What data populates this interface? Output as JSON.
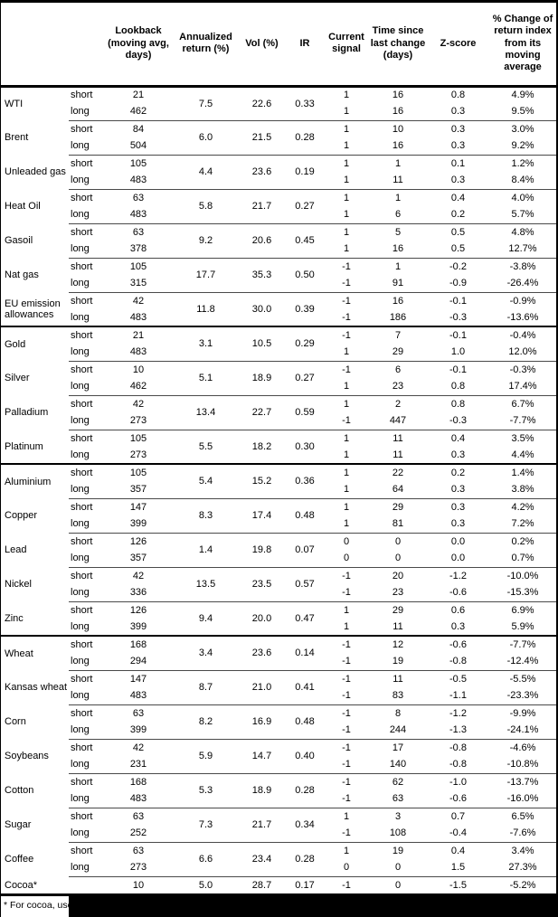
{
  "table": {
    "header": {
      "commodity": "",
      "leg": "",
      "lookback": "Lookback (moving avg, days)",
      "annualized_return": "Annualized return (%)",
      "vol": "Vol (%)",
      "ir": "IR",
      "current_signal": "Current signal",
      "time_since": "Time since last change (days)",
      "z_score": "Z-score",
      "pct_change": "% Change of return index from its moving average"
    },
    "groups": [
      {
        "name": "WTI",
        "sep": "none",
        "ret": "7.5",
        "vol": "22.6",
        "ir": "0.33",
        "legs": [
          [
            "short",
            "21",
            "1",
            "16",
            "0.8",
            "4.9%"
          ],
          [
            "long",
            "462",
            "1",
            "16",
            "0.3",
            "9.5%"
          ]
        ]
      },
      {
        "name": "Brent",
        "sep": "thin",
        "ret": "6.0",
        "vol": "21.5",
        "ir": "0.28",
        "legs": [
          [
            "short",
            "84",
            "1",
            "10",
            "0.3",
            "3.0%"
          ],
          [
            "long",
            "504",
            "1",
            "16",
            "0.3",
            "9.2%"
          ]
        ]
      },
      {
        "name": "Unleaded gas",
        "sep": "thin",
        "ret": "4.4",
        "vol": "23.6",
        "ir": "0.19",
        "legs": [
          [
            "short",
            "105",
            "1",
            "1",
            "0.1",
            "1.2%"
          ],
          [
            "long",
            "483",
            "1",
            "11",
            "0.3",
            "8.4%"
          ]
        ]
      },
      {
        "name": "Heat Oil",
        "sep": "thin",
        "ret": "5.8",
        "vol": "21.7",
        "ir": "0.27",
        "legs": [
          [
            "short",
            "63",
            "1",
            "1",
            "0.4",
            "4.0%"
          ],
          [
            "long",
            "483",
            "1",
            "6",
            "0.2",
            "5.7%"
          ]
        ]
      },
      {
        "name": "Gasoil",
        "sep": "thin",
        "ret": "9.2",
        "vol": "20.6",
        "ir": "0.45",
        "legs": [
          [
            "short",
            "63",
            "1",
            "5",
            "0.5",
            "4.8%"
          ],
          [
            "long",
            "378",
            "1",
            "16",
            "0.5",
            "12.7%"
          ]
        ]
      },
      {
        "name": "Nat gas",
        "sep": "thin",
        "ret": "17.7",
        "vol": "35.3",
        "ir": "0.50",
        "legs": [
          [
            "short",
            "105",
            "-1",
            "1",
            "-0.2",
            "-3.8%"
          ],
          [
            "long",
            "315",
            "-1",
            "91",
            "-0.9",
            "-26.4%"
          ]
        ]
      },
      {
        "name": "EU emission allowances",
        "sep": "thin",
        "ret": "11.8",
        "vol": "30.0",
        "ir": "0.39",
        "legs": [
          [
            "short",
            "42",
            "-1",
            "16",
            "-0.1",
            "-0.9%"
          ],
          [
            "long",
            "483",
            "-1",
            "186",
            "-0.3",
            "-13.6%"
          ]
        ]
      },
      {
        "name": "Gold",
        "sep": "thick",
        "ret": "3.1",
        "vol": "10.5",
        "ir": "0.29",
        "legs": [
          [
            "short",
            "21",
            "-1",
            "7",
            "-0.1",
            "-0.4%"
          ],
          [
            "long",
            "483",
            "1",
            "29",
            "1.0",
            "12.0%"
          ]
        ]
      },
      {
        "name": "Silver",
        "sep": "thin",
        "ret": "5.1",
        "vol": "18.9",
        "ir": "0.27",
        "legs": [
          [
            "short",
            "10",
            "-1",
            "6",
            "-0.1",
            "-0.3%"
          ],
          [
            "long",
            "462",
            "1",
            "23",
            "0.8",
            "17.4%"
          ]
        ]
      },
      {
        "name": "Palladium",
        "sep": "thin",
        "ret": "13.4",
        "vol": "22.7",
        "ir": "0.59",
        "legs": [
          [
            "short",
            "42",
            "1",
            "2",
            "0.8",
            "6.7%"
          ],
          [
            "long",
            "273",
            "-1",
            "447",
            "-0.3",
            "-7.7%"
          ]
        ]
      },
      {
        "name": "Platinum",
        "sep": "thin",
        "ret": "5.5",
        "vol": "18.2",
        "ir": "0.30",
        "legs": [
          [
            "short",
            "105",
            "1",
            "11",
            "0.4",
            "3.5%"
          ],
          [
            "long",
            "273",
            "1",
            "11",
            "0.3",
            "4.4%"
          ]
        ]
      },
      {
        "name": "Aluminium",
        "sep": "thick",
        "ret": "5.4",
        "vol": "15.2",
        "ir": "0.36",
        "legs": [
          [
            "short",
            "105",
            "1",
            "22",
            "0.2",
            "1.4%"
          ],
          [
            "long",
            "357",
            "1",
            "64",
            "0.3",
            "3.8%"
          ]
        ]
      },
      {
        "name": "Copper",
        "sep": "thin",
        "ret": "8.3",
        "vol": "17.4",
        "ir": "0.48",
        "legs": [
          [
            "short",
            "147",
            "1",
            "29",
            "0.3",
            "4.2%"
          ],
          [
            "long",
            "399",
            "1",
            "81",
            "0.3",
            "7.2%"
          ]
        ]
      },
      {
        "name": "Lead",
        "sep": "thin",
        "ret": "1.4",
        "vol": "19.8",
        "ir": "0.07",
        "legs": [
          [
            "short",
            "126",
            "0",
            "0",
            "0.0",
            "0.2%"
          ],
          [
            "long",
            "357",
            "0",
            "0",
            "0.0",
            "0.7%"
          ]
        ]
      },
      {
        "name": "Nickel",
        "sep": "thin",
        "ret": "13.5",
        "vol": "23.5",
        "ir": "0.57",
        "legs": [
          [
            "short",
            "42",
            "-1",
            "20",
            "-1.2",
            "-10.0%"
          ],
          [
            "long",
            "336",
            "-1",
            "23",
            "-0.6",
            "-15.3%"
          ]
        ]
      },
      {
        "name": "Zinc",
        "sep": "thin",
        "ret": "9.4",
        "vol": "20.0",
        "ir": "0.47",
        "legs": [
          [
            "short",
            "126",
            "1",
            "29",
            "0.6",
            "6.9%"
          ],
          [
            "long",
            "399",
            "1",
            "11",
            "0.3",
            "5.9%"
          ]
        ]
      },
      {
        "name": "Wheat",
        "sep": "thick",
        "ret": "3.4",
        "vol": "23.6",
        "ir": "0.14",
        "legs": [
          [
            "short",
            "168",
            "-1",
            "12",
            "-0.6",
            "-7.7%"
          ],
          [
            "long",
            "294",
            "-1",
            "19",
            "-0.8",
            "-12.4%"
          ]
        ]
      },
      {
        "name": "Kansas wheat",
        "sep": "thin",
        "ret": "8.7",
        "vol": "21.0",
        "ir": "0.41",
        "legs": [
          [
            "short",
            "147",
            "-1",
            "11",
            "-0.5",
            "-5.5%"
          ],
          [
            "long",
            "483",
            "-1",
            "83",
            "-1.1",
            "-23.3%"
          ]
        ]
      },
      {
        "name": "Corn",
        "sep": "thin",
        "ret": "8.2",
        "vol": "16.9",
        "ir": "0.48",
        "legs": [
          [
            "short",
            "63",
            "-1",
            "8",
            "-1.2",
            "-9.9%"
          ],
          [
            "long",
            "399",
            "-1",
            "244",
            "-1.3",
            "-24.1%"
          ]
        ]
      },
      {
        "name": "Soybeans",
        "sep": "thin",
        "ret": "5.9",
        "vol": "14.7",
        "ir": "0.40",
        "legs": [
          [
            "short",
            "42",
            "-1",
            "17",
            "-0.8",
            "-4.6%"
          ],
          [
            "long",
            "231",
            "-1",
            "140",
            "-0.8",
            "-10.8%"
          ]
        ]
      },
      {
        "name": "Cotton",
        "sep": "thin",
        "ret": "5.3",
        "vol": "18.9",
        "ir": "0.28",
        "legs": [
          [
            "short",
            "168",
            "-1",
            "62",
            "-1.0",
            "-13.7%"
          ],
          [
            "long",
            "483",
            "-1",
            "63",
            "-0.6",
            "-16.0%"
          ]
        ]
      },
      {
        "name": "Sugar",
        "sep": "thin",
        "ret": "7.3",
        "vol": "21.7",
        "ir": "0.34",
        "legs": [
          [
            "short",
            "63",
            "1",
            "3",
            "0.7",
            "6.5%"
          ],
          [
            "long",
            "252",
            "-1",
            "108",
            "-0.4",
            "-7.6%"
          ]
        ]
      },
      {
        "name": "Coffee",
        "sep": "thin",
        "ret": "6.6",
        "vol": "23.4",
        "ir": "0.28",
        "legs": [
          [
            "short",
            "63",
            "1",
            "19",
            "0.4",
            "3.4%"
          ],
          [
            "long",
            "273",
            "0",
            "0",
            "1.5",
            "27.3%"
          ]
        ]
      },
      {
        "name": "Cocoa*",
        "sep": "thin",
        "ret": "5.0",
        "vol": "28.7",
        "ir": "0.17",
        "legs": [
          [
            "",
            "10",
            "-1",
            "0",
            "-1.5",
            "-5.2%"
          ]
        ]
      }
    ]
  },
  "footnote": {
    "text": "* For cocoa, uses",
    "redacted": true
  },
  "colors": {
    "rule_black": "#000000",
    "rule_thin": "#4a4a4a",
    "redaction": "#000000",
    "background": "#ffffff"
  }
}
